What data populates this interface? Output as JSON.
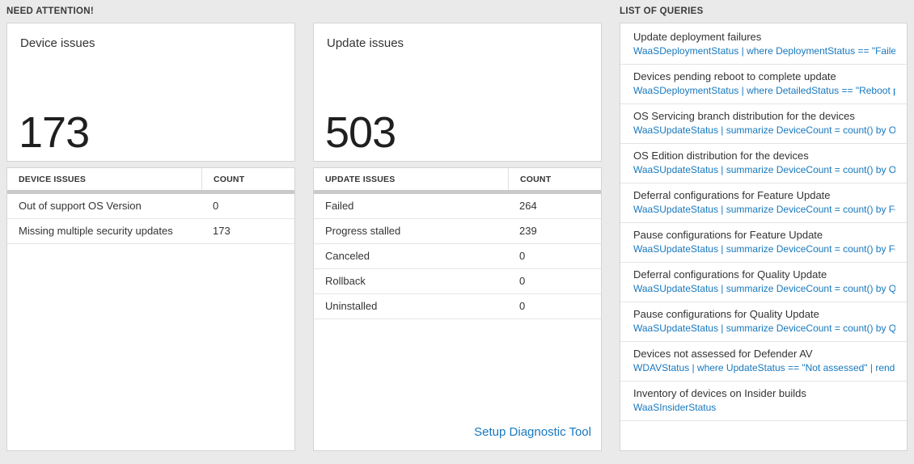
{
  "sections": {
    "need_attention": {
      "title": "NEED ATTENTION!"
    },
    "list_of_queries": {
      "title": "LIST OF QUERIES"
    }
  },
  "cards": [
    {
      "title": "Device issues",
      "count": "173",
      "table": {
        "headers": [
          "DEVICE ISSUES",
          "COUNT"
        ],
        "rows": [
          {
            "label": "Out of support OS Version",
            "count": "0"
          },
          {
            "label": "Missing multiple security updates",
            "count": "173"
          }
        ]
      }
    },
    {
      "title": "Update issues",
      "count": "503",
      "table": {
        "headers": [
          "UPDATE ISSUES",
          "COUNT"
        ],
        "rows": [
          {
            "label": "Failed",
            "count": "264"
          },
          {
            "label": "Progress stalled",
            "count": "239"
          },
          {
            "label": "Canceled",
            "count": "0"
          },
          {
            "label": "Rollback",
            "count": "0"
          },
          {
            "label": "Uninstalled",
            "count": "0"
          }
        ]
      },
      "footer_link": "Setup Diagnostic Tool"
    }
  ],
  "queries": [
    {
      "title": "Update deployment failures",
      "query": "WaaSDeploymentStatus | where DeploymentStatus == \"Failed\" |..."
    },
    {
      "title": "Devices pending reboot to complete update",
      "query": "WaaSDeploymentStatus | where DetailedStatus == \"Reboot pend..."
    },
    {
      "title": "OS Servicing branch distribution for the devices",
      "query": "WaaSUpdateStatus | summarize DeviceCount = count() by OSSer..."
    },
    {
      "title": "OS Edition distribution for the devices",
      "query": "WaaSUpdateStatus | summarize DeviceCount = count() by OSEdit..."
    },
    {
      "title": "Deferral configurations for Feature Update",
      "query": "WaaSUpdateStatus | summarize DeviceCount = count() by Featur..."
    },
    {
      "title": "Pause configurations for Feature Update",
      "query": "WaaSUpdateStatus | summarize DeviceCount = count() by Featur..."
    },
    {
      "title": "Deferral configurations for Quality Update",
      "query": "WaaSUpdateStatus | summarize DeviceCount = count() by Qualit..."
    },
    {
      "title": "Pause configurations for Quality Update",
      "query": "WaaSUpdateStatus | summarize DeviceCount = count() by Qualit..."
    },
    {
      "title": "Devices not assessed for Defender AV",
      "query": "WDAVStatus | where UpdateStatus == \"Not assessed\" | render ta..."
    },
    {
      "title": "Inventory of devices on Insider builds",
      "query": "WaaSInsiderStatus"
    }
  ],
  "colors": {
    "page_bg": "#eaeaea",
    "card_border": "#d4d4d4",
    "accent_blue": "#1778be",
    "header_rule": "#c9c9c9",
    "text": "#333333"
  }
}
